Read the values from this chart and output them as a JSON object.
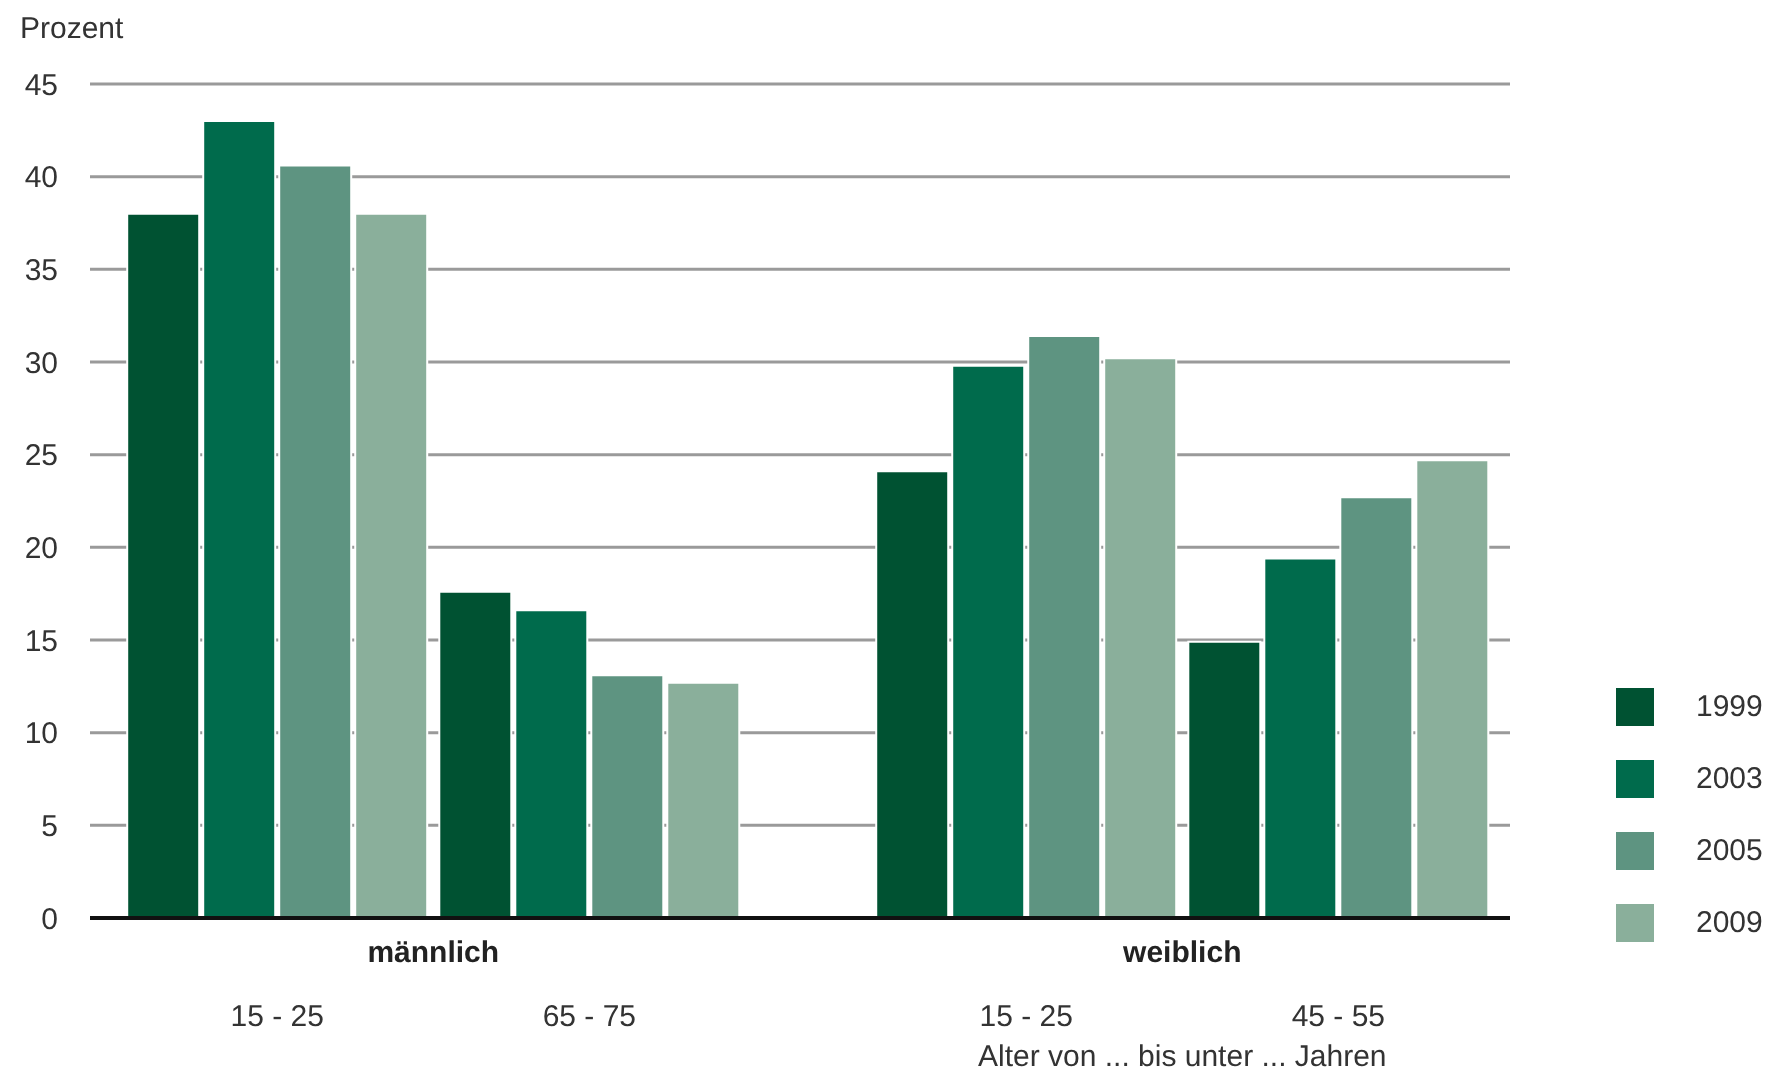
{
  "chart_data": {
    "type": "bar",
    "ylabel": "Prozent",
    "xlabel": "Alter von ... bis unter ... Jahren",
    "categories": [
      "15 - 25",
      "65 - 75",
      "15 - 25",
      "45 - 55"
    ],
    "annotations": [
      "männlich",
      "weiblich"
    ],
    "series": [
      {
        "name": "1999",
        "color": "#005232",
        "values": [
          38.0,
          17.6,
          24.1,
          14.9
        ]
      },
      {
        "name": "2003",
        "color": "#006b4c",
        "values": [
          43.0,
          16.6,
          29.8,
          19.4
        ]
      },
      {
        "name": "2005",
        "color": "#5e9481",
        "values": [
          40.6,
          13.1,
          31.4,
          22.7
        ]
      },
      {
        "name": "2009",
        "color": "#8aaf9b",
        "values": [
          38.0,
          12.7,
          30.2,
          24.7
        ]
      }
    ],
    "ylim": [
      0,
      45
    ],
    "yticks": [
      0,
      5,
      10,
      15,
      20,
      25,
      30,
      35,
      40,
      45
    ],
    "grid": "y",
    "legend": "right"
  }
}
